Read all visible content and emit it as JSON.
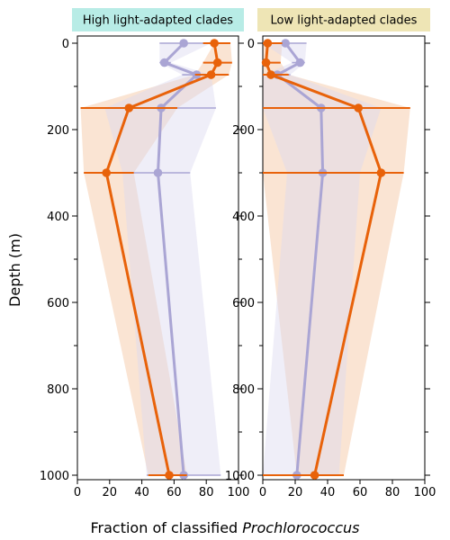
{
  "chart_data": {
    "type": "line",
    "ylabel": "Depth (m)",
    "xlabel_prefix": "Fraction of classified ",
    "xlabel_italic": "Prochlorococcus",
    "xlim": [
      0,
      100
    ],
    "ylim": [
      0,
      1000
    ],
    "y_inverted": true,
    "x_ticks": [
      "0",
      "20",
      "40",
      "60",
      "80",
      "100"
    ],
    "y_ticks": [
      "0",
      "200",
      "400",
      "600",
      "800",
      "1000"
    ],
    "colors": {
      "orange": "#e8620a",
      "purple": "#aaa5d4",
      "orange_band": "#f6c9a8",
      "purple_band": "#dcdaf0"
    },
    "panels": [
      {
        "title": "High light-adapted clades",
        "title_bg": "#b8ece6",
        "series": [
          {
            "color": "orange",
            "depth": [
              0,
              45,
              73,
              150,
              300,
              1000
            ],
            "value": [
              85,
              87,
              83,
              32,
              18,
              57
            ],
            "err_lo": [
              78,
              78,
              73,
              2,
              4,
              44
            ],
            "err_hi": [
              95,
              96,
              94,
              62,
              35,
              68
            ],
            "band_lo": [
              85,
              78,
              73,
              2,
              4,
              44
            ],
            "band_hi": [
              95,
              96,
              94,
              62,
              35,
              68
            ]
          },
          {
            "color": "purple",
            "depth": [
              0,
              45,
              73,
              150,
              300,
              1000
            ],
            "value": [
              66,
              54,
              74,
              52,
              50,
              66
            ],
            "err_lo": [
              51,
              51,
              65,
              17,
              28,
              43
            ],
            "err_hi": [
              83,
              58,
              83,
              86,
              70,
              89
            ],
            "band_lo": [
              51,
              51,
              65,
              17,
              28,
              43
            ],
            "band_hi": [
              83,
              58,
              83,
              86,
              70,
              89
            ]
          }
        ]
      },
      {
        "title": "Low light-adapted clades",
        "title_bg": "#eee5b5",
        "series": [
          {
            "color": "orange",
            "depth": [
              0,
              45,
              73,
              150,
              300,
              1000
            ],
            "value": [
              3,
              2,
              5,
              59,
              73,
              32
            ],
            "err_lo": [
              0,
              0,
              0,
              0,
              0,
              0
            ],
            "err_hi": [
              12,
              11,
              16,
              91,
              87,
              50
            ],
            "band_lo": [
              0,
              0,
              0,
              0,
              0,
              21
            ],
            "band_hi": [
              12,
              11,
              16,
              91,
              87,
              50
            ]
          },
          {
            "color": "purple",
            "depth": [
              0,
              45,
              73,
              150,
              300,
              1000
            ],
            "value": [
              14,
              23,
              9,
              36,
              37,
              21
            ],
            "err_lo": [
              0,
              18,
              0,
              0,
              15,
              0
            ],
            "err_hi": [
              27,
              26,
              17,
              73,
              60,
              47
            ],
            "band_lo": [
              0,
              18,
              0,
              0,
              15,
              0
            ],
            "band_hi": [
              27,
              26,
              17,
              73,
              60,
              47
            ]
          }
        ]
      }
    ]
  }
}
